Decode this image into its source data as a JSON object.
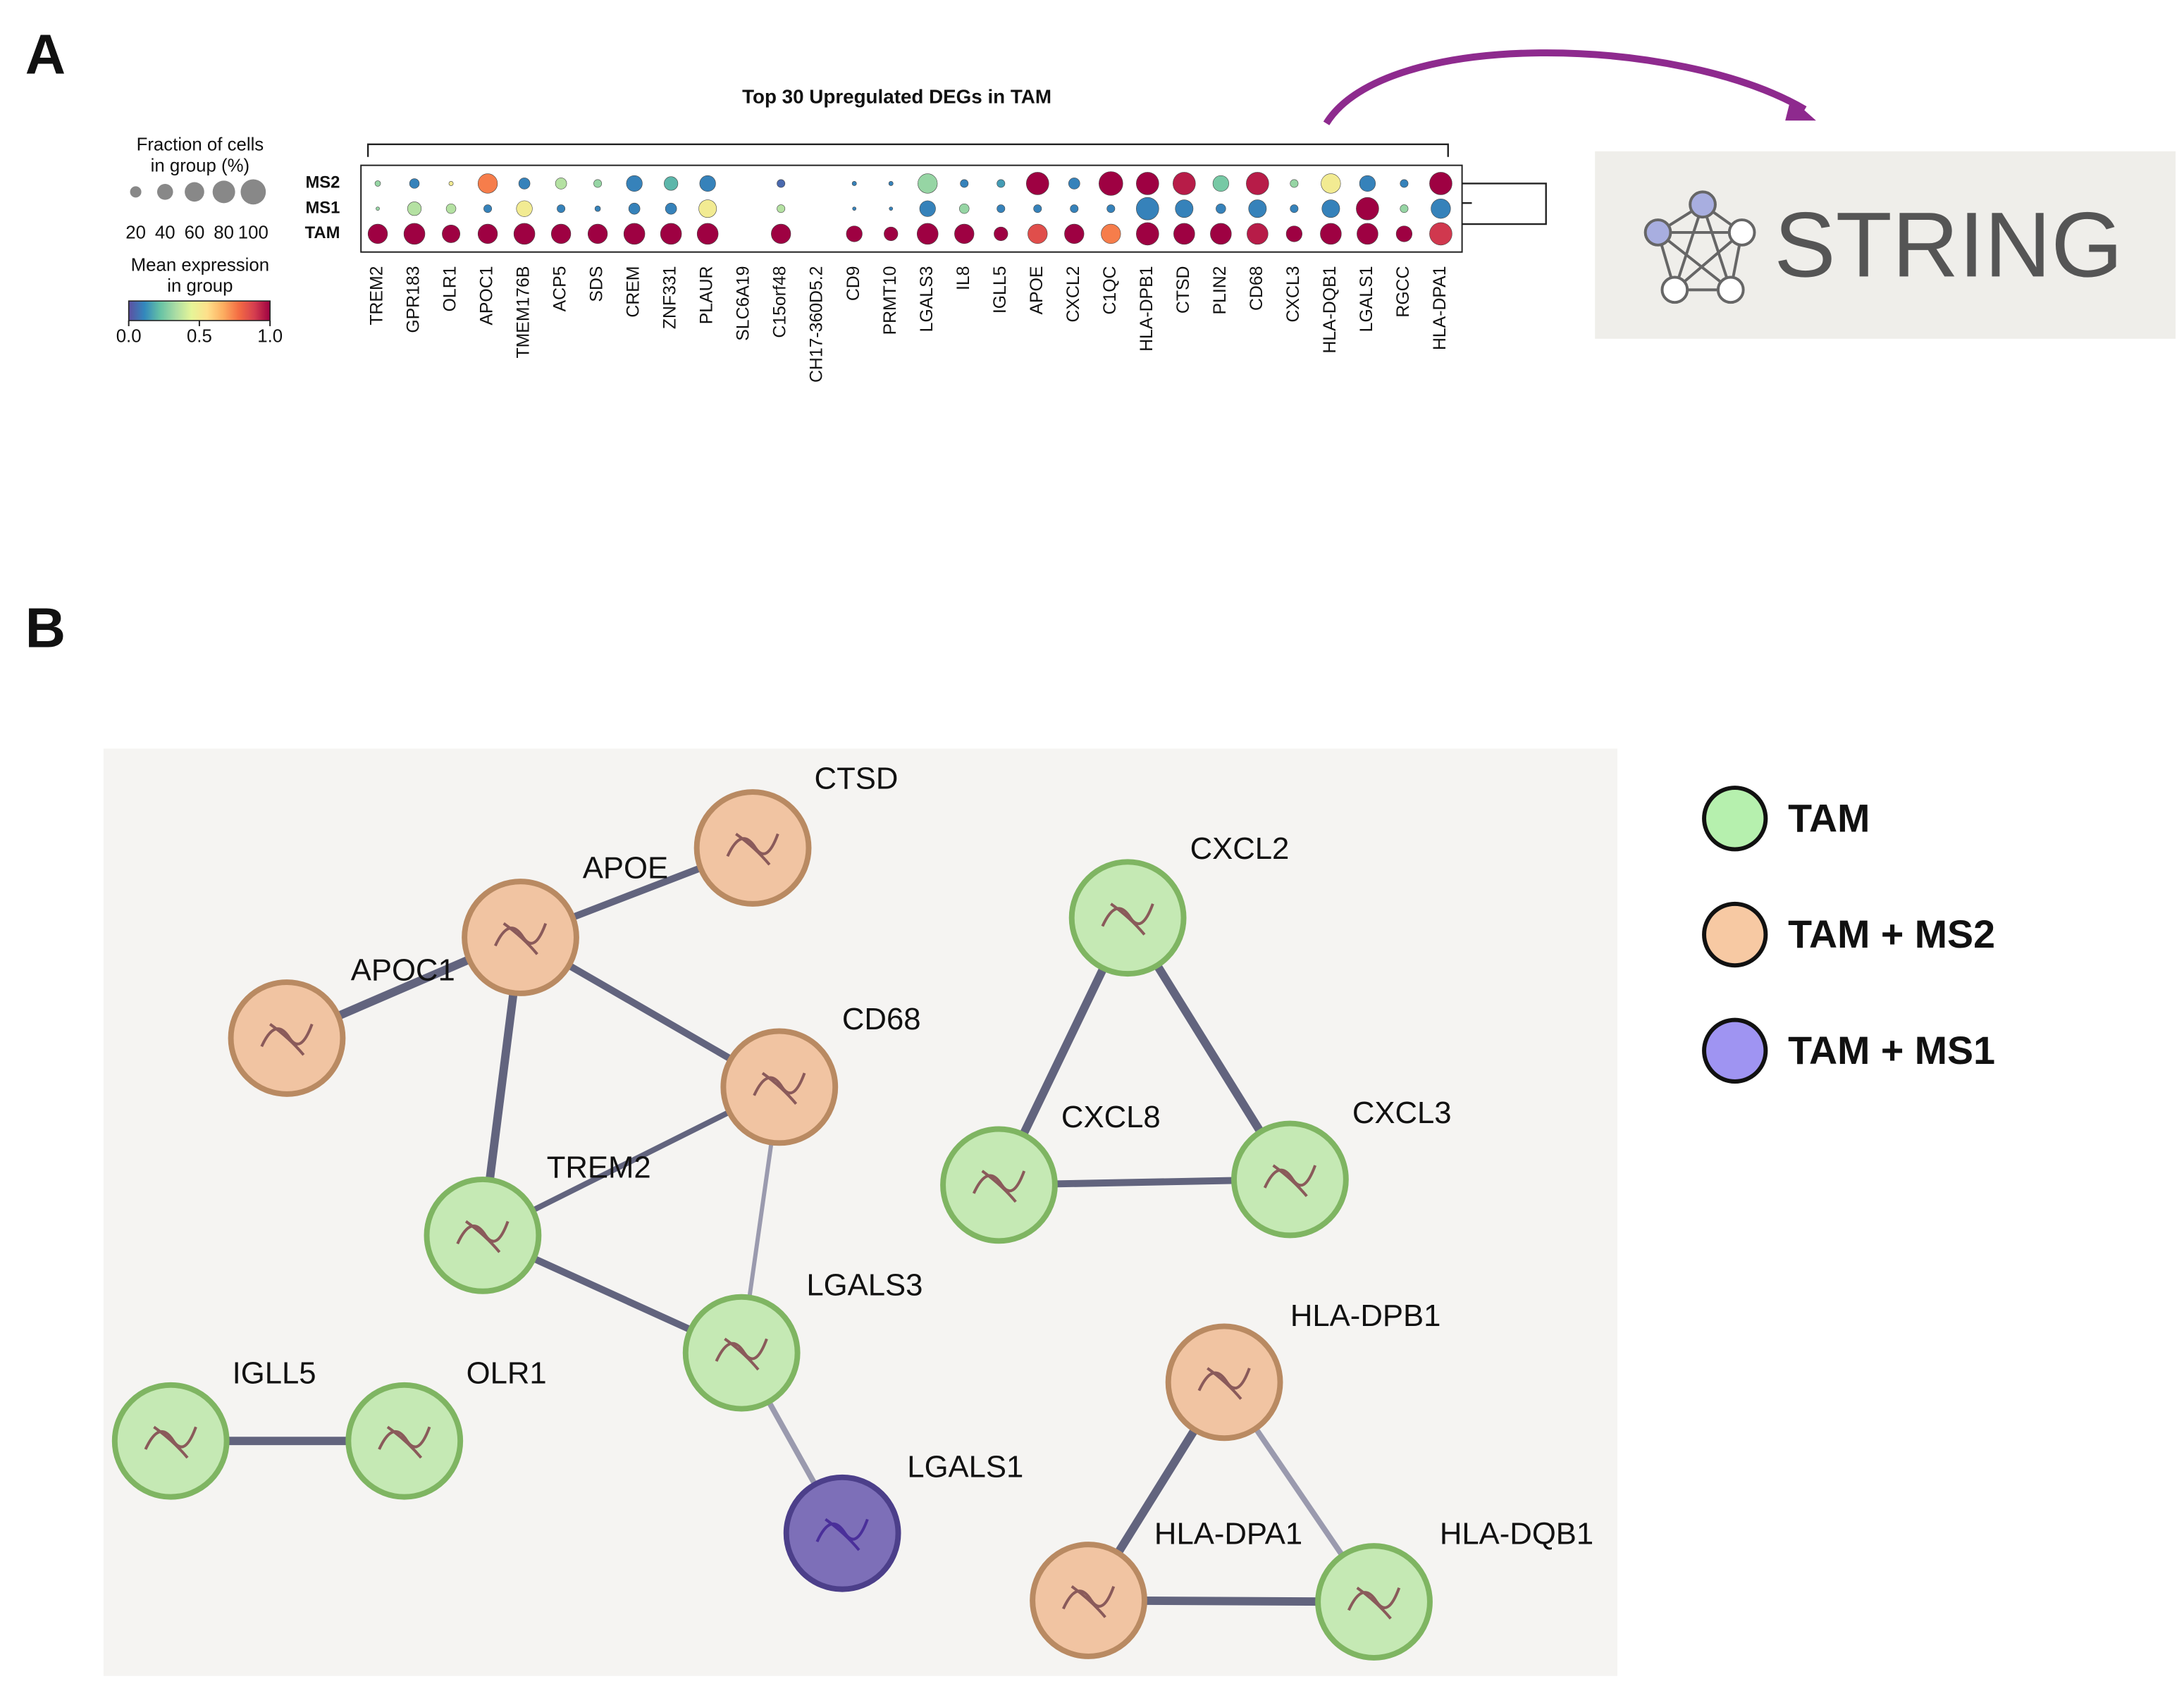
{
  "panels": [
    "A",
    "B"
  ],
  "chart_data": {
    "type": "dotplot",
    "title": "Top 30 Upregulated DEGs in TAM",
    "categories": [
      "TREM2",
      "GPR183",
      "OLR1",
      "APOC1",
      "TMEM176B",
      "ACP5",
      "SDS",
      "CREM",
      "ZNF331",
      "PLAUR",
      "SLC6A19",
      "C15orf48",
      "CH17-360D5.2",
      "CD9",
      "PRMT10",
      "LGALS3",
      "IL8",
      "IGLL5",
      "APOE",
      "CXCL2",
      "C1QC",
      "HLA-DPB1",
      "CTSD",
      "PLIN2",
      "CD68",
      "CXCL3",
      "HLA-DQB1",
      "LGALS1",
      "RGCC",
      "HLA-DPA1"
    ],
    "groups": [
      "MS2",
      "MS1",
      "TAM"
    ],
    "fraction": [
      [
        5,
        15,
        3,
        60,
        20,
        20,
        10,
        40,
        30,
        40,
        0,
        10,
        0,
        3,
        3,
        60,
        10,
        10,
        80,
        20,
        90,
        80,
        80,
        40,
        80,
        10,
        60,
        40,
        10,
        80
      ],
      [
        2,
        30,
        15,
        10,
        40,
        10,
        5,
        20,
        20,
        50,
        0,
        10,
        0,
        2,
        2,
        40,
        15,
        10,
        10,
        10,
        10,
        80,
        50,
        15,
        50,
        10,
        50,
        80,
        10,
        60
      ],
      [
        60,
        70,
        50,
        60,
        70,
        60,
        60,
        70,
        70,
        70,
        0,
        60,
        0,
        40,
        30,
        70,
        60,
        30,
        60,
        60,
        60,
        80,
        70,
        70,
        70,
        40,
        70,
        70,
        40,
        80
      ]
    ],
    "mean": [
      [
        0.3,
        0.1,
        0.5,
        0.75,
        0.1,
        0.35,
        0.3,
        0.1,
        0.2,
        0.1,
        0,
        0.05,
        0,
        0.1,
        0.1,
        0.3,
        0.1,
        0.15,
        1.0,
        0.1,
        1.0,
        1.0,
        0.95,
        0.25,
        0.95,
        0.3,
        0.5,
        0.1,
        0.1,
        1.0
      ],
      [
        0.3,
        0.35,
        0.35,
        0.1,
        0.5,
        0.1,
        0.1,
        0.1,
        0.1,
        0.5,
        0,
        0.35,
        0,
        0.1,
        0.1,
        0.1,
        0.3,
        0.1,
        0.1,
        0.1,
        0.1,
        0.1,
        0.1,
        0.1,
        0.1,
        0.1,
        0.1,
        1.0,
        0.3,
        0.1
      ],
      [
        1.0,
        1.0,
        1.0,
        1.0,
        1.0,
        1.0,
        1.0,
        1.0,
        1.0,
        1.0,
        0,
        1.0,
        0,
        1.0,
        1.0,
        1.0,
        1.0,
        1.0,
        0.85,
        1.0,
        0.75,
        1.0,
        1.0,
        1.0,
        0.95,
        1.0,
        1.0,
        1.0,
        1.0,
        0.9
      ]
    ],
    "size_legend_title": [
      "Fraction of cells",
      "in group (%)"
    ],
    "size_ticks": [
      20,
      40,
      60,
      80,
      100
    ],
    "color_legend_title": [
      "Mean expression",
      "in group"
    ],
    "color_ticks": [
      {
        "value": 0,
        "label": "0.0"
      },
      0.5,
      {
        "value": 1,
        "label": "1.0"
      }
    ],
    "colorlim": [
      0,
      1
    ],
    "colormap": [
      "#5e4fa2",
      "#3288bd",
      "#66c2a5",
      "#abdda4",
      "#e6f598",
      "#fee08b",
      "#fdae61",
      "#f46d43",
      "#d53e4f",
      "#9e0142"
    ]
  },
  "string_logo": "STRING",
  "network": {
    "legend": [
      {
        "label": "TAM",
        "color": "#b6f0ae"
      },
      {
        "label": "TAM + MS2",
        "color": "#f7c9a3"
      },
      {
        "label": "TAM + MS1",
        "color": "#9f94f2"
      }
    ],
    "nodes": [
      {
        "label": "CTSD",
        "group": 1
      },
      {
        "label": "APOE",
        "group": 1
      },
      {
        "label": "APOC1",
        "group": 1
      },
      {
        "label": "CD68",
        "group": 1
      },
      {
        "label": "TREM2",
        "group": 0
      },
      {
        "label": "LGALS3",
        "group": 0
      },
      {
        "label": "IGLL5",
        "group": 0
      },
      {
        "label": "OLR1",
        "group": 0
      },
      {
        "label": "LGALS1",
        "group": 2
      },
      {
        "label": "CXCL2",
        "group": 0
      },
      {
        "label": "CXCL8",
        "group": 0
      },
      {
        "label": "CXCL3",
        "group": 0
      },
      {
        "label": "HLA-DPB1",
        "group": 1
      },
      {
        "label": "HLA-DPA1",
        "group": 1
      },
      {
        "label": "HLA-DQB1",
        "group": 0
      }
    ],
    "edges": [
      [
        1,
        0
      ],
      [
        1,
        2
      ],
      [
        1,
        3
      ],
      [
        1,
        4
      ],
      [
        3,
        4
      ],
      [
        3,
        5
      ],
      [
        4,
        5
      ],
      [
        5,
        8
      ],
      [
        6,
        7
      ],
      [
        9,
        10
      ],
      [
        9,
        11
      ],
      [
        10,
        11
      ],
      [
        12,
        13
      ],
      [
        12,
        14
      ],
      [
        13,
        14
      ]
    ]
  }
}
